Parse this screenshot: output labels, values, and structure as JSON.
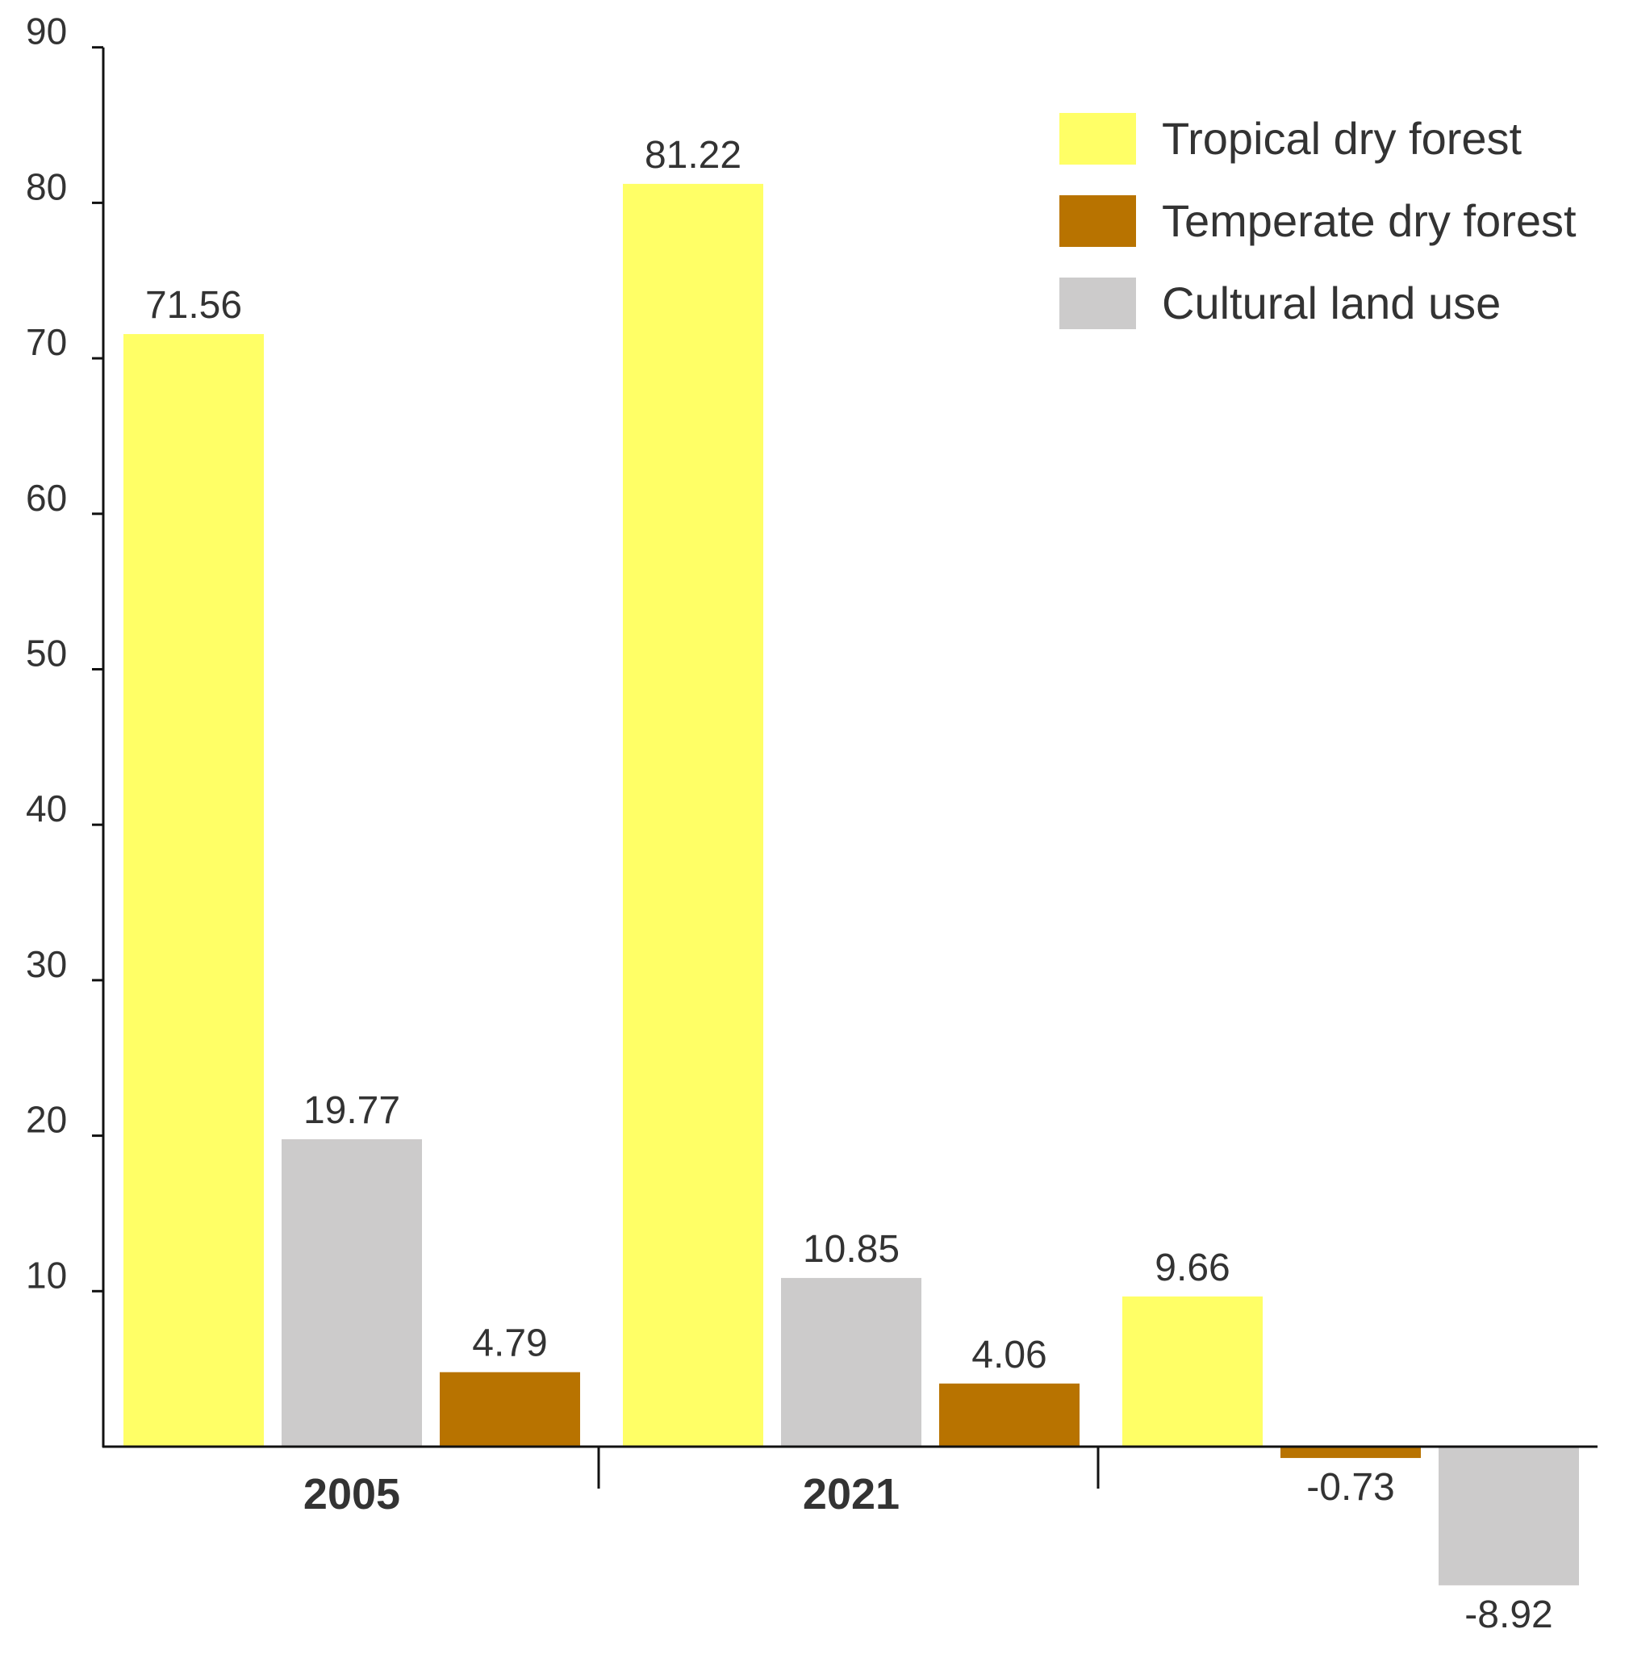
{
  "chart_data": {
    "type": "bar",
    "title": "",
    "xlabel": "",
    "ylabel": "",
    "ylim": [
      -9,
      90
    ],
    "yticks": [
      10,
      20,
      30,
      40,
      50,
      60,
      70,
      80,
      90
    ],
    "legend_position": "top-right",
    "legend": [
      {
        "name": "Tropical dry forest",
        "color": "#ffff66"
      },
      {
        "name": "Temperate dry forest",
        "color": "#b87300"
      },
      {
        "name": "Cultural land use",
        "color": "#cccbcb"
      }
    ],
    "groups": [
      {
        "category": "2005",
        "bars": [
          {
            "series": "Tropical dry forest",
            "value": 71.56,
            "label": "71.56"
          },
          {
            "series": "Cultural land use",
            "value": 19.77,
            "label": "19.77"
          },
          {
            "series": "Temperate dry forest",
            "value": 4.79,
            "label": "4.79"
          }
        ]
      },
      {
        "category": "2021",
        "bars": [
          {
            "series": "Tropical dry forest",
            "value": 81.22,
            "label": "81.22"
          },
          {
            "series": "Cultural land use",
            "value": 10.85,
            "label": "10.85"
          },
          {
            "series": "Temperate dry forest",
            "value": 4.06,
            "label": "4.06"
          }
        ]
      },
      {
        "category": "",
        "bars": [
          {
            "series": "Tropical dry forest",
            "value": 9.66,
            "label": "9.66"
          },
          {
            "series": "Temperate dry forest",
            "value": -0.73,
            "label": "-0.73"
          },
          {
            "series": "Cultural land use",
            "value": -8.92,
            "label": "-8.92"
          }
        ]
      }
    ]
  }
}
